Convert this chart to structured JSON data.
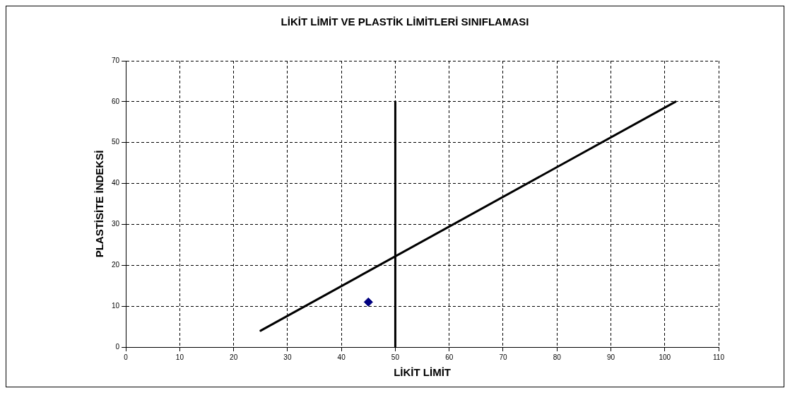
{
  "chart_data": {
    "type": "scatter",
    "title": "LİKİT LİMİT VE PLASTİK LİMİTLERİ SINIFLAMASI",
    "xlabel": "LİKİT LİMİT",
    "ylabel": "PLASTİSİTE İNDEKSİ",
    "xlim": [
      0,
      110
    ],
    "xticks": [
      0,
      10,
      20,
      30,
      40,
      50,
      60,
      70,
      80,
      90,
      100,
      110
    ],
    "ylim": [
      0,
      70
    ],
    "yticks": [
      0,
      10,
      20,
      30,
      40,
      50,
      60,
      70
    ],
    "grid": true,
    "legend": false,
    "series": [
      {
        "type": "line",
        "color": "#000000",
        "x": [
          25,
          102
        ],
        "values": [
          4,
          60
        ]
      },
      {
        "type": "line",
        "color": "#000000",
        "x": [
          50,
          50
        ],
        "values": [
          0,
          60
        ]
      },
      {
        "type": "scatter",
        "color": "#000080",
        "marker": "diamond",
        "x": [
          45
        ],
        "values": [
          11
        ]
      }
    ]
  }
}
